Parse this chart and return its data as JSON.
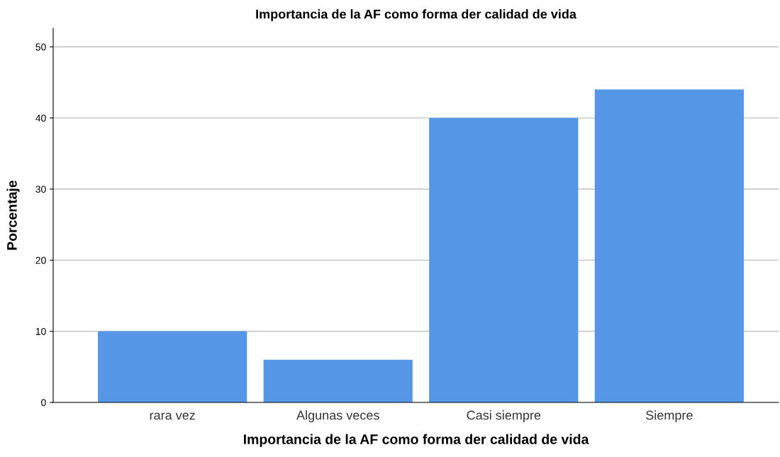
{
  "chart_data": {
    "type": "bar",
    "title": "Importancia de la AF como forma der calidad de vida",
    "xlabel": "Importancia de la AF como forma der calidad de vida",
    "ylabel": "Porcentaje",
    "categories": [
      "rara vez",
      "Algunas veces",
      "Casi siempre",
      "Siempre"
    ],
    "values": [
      10,
      6,
      40,
      44
    ],
    "color": "#5596e6",
    "ylim": [
      0,
      52.6
    ],
    "yticks": [
      0,
      10,
      20,
      30,
      40,
      50
    ],
    "grid": "y"
  }
}
